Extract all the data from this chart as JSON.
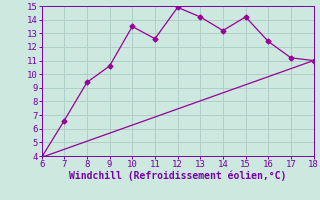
{
  "xlabel": "Windchill (Refroidissement éolien,°C)",
  "line1_x": [
    6,
    7,
    8,
    9,
    10,
    11,
    12,
    13,
    14,
    15,
    16,
    17,
    18
  ],
  "line1_y": [
    3.9,
    6.6,
    9.4,
    10.6,
    13.5,
    12.6,
    14.9,
    14.2,
    13.2,
    14.2,
    12.4,
    11.2,
    11.0
  ],
  "line2_x": [
    6,
    18
  ],
  "line2_y": [
    3.9,
    11.0
  ],
  "line_color": "#990099",
  "marker": "D",
  "marker_size": 2.5,
  "xlim": [
    6,
    18
  ],
  "ylim": [
    4,
    15
  ],
  "xticks": [
    6,
    7,
    8,
    9,
    10,
    11,
    12,
    13,
    14,
    15,
    16,
    17,
    18
  ],
  "yticks": [
    4,
    5,
    6,
    7,
    8,
    9,
    10,
    11,
    12,
    13,
    14,
    15
  ],
  "bg_color": "#cce8df",
  "grid_color": "#aed0c8",
  "tick_color": "#7700aa",
  "label_color": "#7700aa",
  "figsize": [
    3.2,
    2.0
  ],
  "dpi": 100
}
